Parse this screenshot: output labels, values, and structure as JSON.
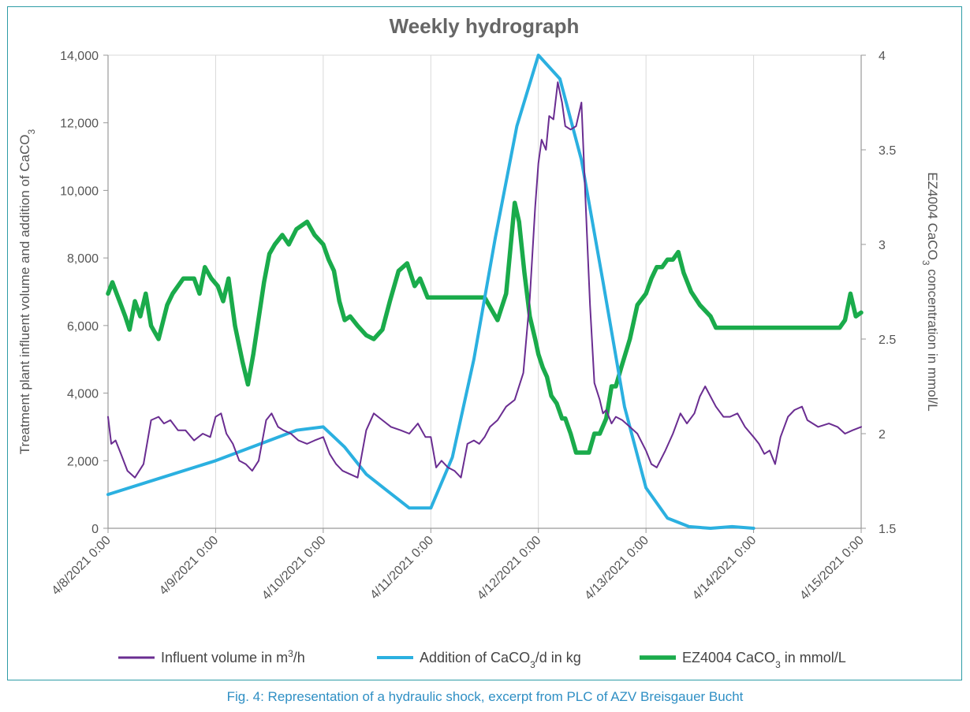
{
  "caption": "Fig. 4: Representation of a hydraulic shock, excerpt from PLC of AZV Breisgauer Bucht",
  "chart_data": {
    "type": "line",
    "title": "Weekly hydrograph",
    "ylabel": "Treatment plant influent volume and addition of CaCO3",
    "y2label": "EZ4004 CaCO3 concentration in mmol/L",
    "ylim": [
      0,
      14000
    ],
    "y2lim": [
      1.5,
      4
    ],
    "yticks": [
      "0",
      "2,000",
      "4,000",
      "6,000",
      "8,000",
      "10,000",
      "12,000",
      "14,000"
    ],
    "y2ticks": [
      "1.5",
      "2",
      "2.5",
      "3",
      "3.5",
      "4"
    ],
    "xticks": [
      "4/8/2021 0:00",
      "4/9/2021 0:00",
      "4/10/2021 0:00",
      "4/11/2021 0:00",
      "4/12/2021 0:00",
      "4/13/2021 0:00",
      "4/14/2021 0:00",
      "4/15/2021 0:00"
    ],
    "xlim": [
      0,
      7
    ],
    "grid": "vertical",
    "legend_position": "bottom",
    "colors": {
      "influent": "#6a2d91",
      "caco3_addition": "#2bb0e0",
      "ez4004": "#1aab4b",
      "title": "#666666",
      "axis_text": "#555555",
      "grid": "#d9d9d9",
      "frame": "#2e9ca6",
      "caption": "#2f8fc4"
    },
    "series": [
      {
        "name": "Influent volume in m3/h",
        "legend": {
          "pre": "Influent volume in m",
          "sup": "3",
          "post": "/h",
          "sub": ""
        },
        "axis": "left",
        "x": [
          0,
          0.03,
          0.07,
          0.12,
          0.18,
          0.25,
          0.33,
          0.4,
          0.47,
          0.52,
          0.58,
          0.65,
          0.72,
          0.8,
          0.88,
          0.95,
          1.0,
          1.05,
          1.1,
          1.16,
          1.22,
          1.28,
          1.34,
          1.4,
          1.47,
          1.52,
          1.58,
          1.63,
          1.7,
          1.77,
          1.85,
          1.92,
          2.0,
          2.06,
          2.12,
          2.18,
          2.25,
          2.32,
          2.4,
          2.47,
          2.55,
          2.63,
          2.72,
          2.8,
          2.88,
          2.95,
          3.0,
          3.05,
          3.1,
          3.16,
          3.22,
          3.28,
          3.34,
          3.4,
          3.45,
          3.5,
          3.55,
          3.62,
          3.7,
          3.78,
          3.86,
          3.92,
          3.97,
          4.0,
          4.03,
          4.07,
          4.1,
          4.14,
          4.18,
          4.22,
          4.25,
          4.3,
          4.35,
          4.4,
          4.45,
          4.48,
          4.52,
          4.57,
          4.6,
          4.63,
          4.68,
          4.72,
          4.78,
          4.85,
          4.92,
          5.0,
          5.05,
          5.1,
          5.18,
          5.25,
          5.32,
          5.38,
          5.45,
          5.5,
          5.55,
          5.6,
          5.65,
          5.72,
          5.78,
          5.85,
          5.92,
          6.0,
          6.05,
          6.1,
          6.15,
          6.2,
          6.25,
          6.32,
          6.38,
          6.45,
          6.5,
          6.55,
          6.6,
          6.7,
          6.78,
          6.85,
          6.92,
          7.0
        ],
        "values": [
          3300,
          2500,
          2600,
          2200,
          1700,
          1500,
          1900,
          3200,
          3300,
          3100,
          3200,
          2900,
          2900,
          2600,
          2800,
          2700,
          3300,
          3400,
          2800,
          2500,
          2000,
          1900,
          1700,
          2000,
          3200,
          3400,
          3000,
          2900,
          2800,
          2600,
          2500,
          2600,
          2700,
          2200,
          1900,
          1700,
          1600,
          1500,
          2900,
          3400,
          3200,
          3000,
          2900,
          2800,
          3100,
          2700,
          2700,
          1800,
          2000,
          1800,
          1700,
          1500,
          2500,
          2600,
          2500,
          2700,
          3000,
          3200,
          3600,
          3800,
          4600,
          6800,
          9500,
          10800,
          11500,
          11200,
          12200,
          12100,
          13200,
          12600,
          11900,
          11800,
          11900,
          12600,
          8800,
          6600,
          4300,
          3800,
          3400,
          3500,
          3100,
          3300,
          3200,
          3000,
          2800,
          2300,
          1900,
          1800,
          2300,
          2800,
          3400,
          3100,
          3400,
          3900,
          4200,
          3900,
          3600,
          3300,
          3300,
          3400,
          3000,
          2700,
          2500,
          2200,
          2300,
          1900,
          2700,
          3300,
          3500,
          3600,
          3200,
          3100,
          3000,
          3100,
          3000,
          2800,
          2900,
          3000
        ]
      },
      {
        "name": "Addition of CaCO3/d in kg",
        "legend": {
          "pre": "Addition of CaCO",
          "sup": "",
          "post": "",
          "sub": "3",
          "tail": "/d in kg"
        },
        "axis": "left",
        "x": [
          0,
          0.5,
          1.0,
          1.5,
          1.75,
          2.0,
          2.2,
          2.4,
          2.6,
          2.8,
          3.0,
          3.2,
          3.4,
          3.6,
          3.8,
          4.0,
          4.2,
          4.4,
          4.6,
          4.8,
          5.0,
          5.2,
          5.4,
          5.6,
          5.8,
          6.0
        ],
        "values": [
          1000,
          1500,
          2000,
          2600,
          2900,
          3000,
          2400,
          1600,
          1100,
          600,
          600,
          2100,
          5000,
          8600,
          11900,
          14000,
          13300,
          10900,
          7300,
          3600,
          1200,
          300,
          50,
          0,
          50,
          0
        ]
      },
      {
        "name": "EZ4004 CaCO3 in mmol/L",
        "legend": {
          "pre": "EZ4004 CaCO",
          "sup": "",
          "post": "",
          "sub": "3",
          "tail": " in mmol/L"
        },
        "axis": "right",
        "x": [
          0,
          0.04,
          0.08,
          0.12,
          0.16,
          0.2,
          0.25,
          0.3,
          0.35,
          0.4,
          0.47,
          0.55,
          0.6,
          0.7,
          0.8,
          0.85,
          0.9,
          0.96,
          1.02,
          1.07,
          1.12,
          1.18,
          1.25,
          1.3,
          1.35,
          1.45,
          1.5,
          1.55,
          1.62,
          1.68,
          1.75,
          1.85,
          1.92,
          2.0,
          2.05,
          2.1,
          2.15,
          2.2,
          2.25,
          2.32,
          2.4,
          2.47,
          2.55,
          2.62,
          2.7,
          2.78,
          2.85,
          2.9,
          2.97,
          3.05,
          3.1,
          3.15,
          3.2,
          3.25,
          3.3,
          3.4,
          3.5,
          3.62,
          3.7,
          3.78,
          3.82,
          3.87,
          3.92,
          3.97,
          4.0,
          4.04,
          4.08,
          4.12,
          4.17,
          4.22,
          4.25,
          4.3,
          4.35,
          4.4,
          4.47,
          4.52,
          4.57,
          4.63,
          4.68,
          4.72,
          4.77,
          4.85,
          4.92,
          5.0,
          5.05,
          5.1,
          5.15,
          5.2,
          5.25,
          5.3,
          5.35,
          5.42,
          5.5,
          5.6,
          5.65,
          5.7,
          5.75,
          5.85,
          5.95,
          6.0,
          6.1,
          6.2,
          6.3,
          6.4,
          6.5,
          6.6,
          6.7,
          6.8,
          6.85,
          6.9,
          6.95,
          7.0
        ],
        "values": [
          2.74,
          2.8,
          2.74,
          2.68,
          2.62,
          2.55,
          2.7,
          2.62,
          2.74,
          2.57,
          2.5,
          2.68,
          2.74,
          2.82,
          2.82,
          2.74,
          2.88,
          2.82,
          2.78,
          2.7,
          2.82,
          2.57,
          2.38,
          2.26,
          2.42,
          2.8,
          2.95,
          3.0,
          3.05,
          3.0,
          3.08,
          3.12,
          3.05,
          3.0,
          2.92,
          2.86,
          2.7,
          2.6,
          2.62,
          2.57,
          2.52,
          2.5,
          2.55,
          2.7,
          2.86,
          2.9,
          2.78,
          2.82,
          2.72,
          2.72,
          2.72,
          2.72,
          2.72,
          2.72,
          2.72,
          2.72,
          2.72,
          2.6,
          2.74,
          3.22,
          3.12,
          2.85,
          2.62,
          2.5,
          2.42,
          2.35,
          2.3,
          2.2,
          2.16,
          2.08,
          2.08,
          2.0,
          1.9,
          1.9,
          1.9,
          2.0,
          2.0,
          2.08,
          2.25,
          2.25,
          2.35,
          2.5,
          2.68,
          2.74,
          2.82,
          2.88,
          2.88,
          2.92,
          2.92,
          2.96,
          2.85,
          2.75,
          2.68,
          2.62,
          2.56,
          2.56,
          2.56,
          2.56,
          2.56,
          2.56,
          2.56,
          2.56,
          2.56,
          2.56,
          2.56,
          2.56,
          2.56,
          2.56,
          2.6,
          2.74,
          2.62,
          2.64
        ]
      }
    ]
  }
}
